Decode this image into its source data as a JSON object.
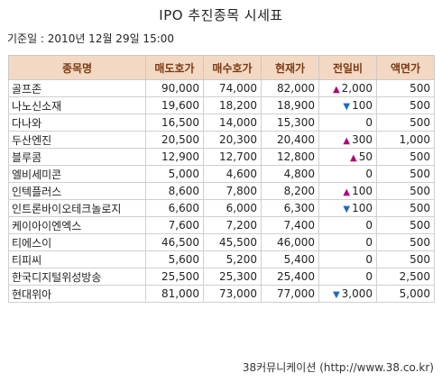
{
  "title": "IPO 추진종목 시세표",
  "base_date": "기준일 : 2010년 12월 29일 15:00",
  "colors": {
    "header_bg": "#f3d9c3",
    "up": "#b0007a",
    "down": "#1f68c9"
  },
  "icons": {
    "up": "▲",
    "down": "▼"
  },
  "columns": [
    "종목명",
    "매도호가",
    "매수호가",
    "현재가",
    "전일비",
    "액면가"
  ],
  "rows": [
    {
      "name": "골프존",
      "sell": "90,000",
      "buy": "74,000",
      "price": "82,000",
      "dir": "up",
      "change": "2,000",
      "par": "500"
    },
    {
      "name": "나노신소재",
      "sell": "19,600",
      "buy": "18,200",
      "price": "18,900",
      "dir": "down",
      "change": "100",
      "par": "500"
    },
    {
      "name": "다나와",
      "sell": "16,500",
      "buy": "14,000",
      "price": "15,300",
      "dir": "",
      "change": "0",
      "par": "500"
    },
    {
      "name": "두산엔진",
      "sell": "20,500",
      "buy": "20,300",
      "price": "20,400",
      "dir": "up",
      "change": "300",
      "par": "1,000"
    },
    {
      "name": "블루콤",
      "sell": "12,900",
      "buy": "12,700",
      "price": "12,800",
      "dir": "up",
      "change": "50",
      "par": "500"
    },
    {
      "name": "엘비세미콘",
      "sell": "5,000",
      "buy": "4,600",
      "price": "4,800",
      "dir": "",
      "change": "0",
      "par": "500"
    },
    {
      "name": "인텍플러스",
      "sell": "8,600",
      "buy": "7,800",
      "price": "8,200",
      "dir": "up",
      "change": "100",
      "par": "500"
    },
    {
      "name": "인트론바이오테크놀로지",
      "sell": "6,600",
      "buy": "6,000",
      "price": "6,300",
      "dir": "down",
      "change": "100",
      "par": "500"
    },
    {
      "name": "케이아이엔엑스",
      "sell": "7,600",
      "buy": "7,200",
      "price": "7,400",
      "dir": "",
      "change": "0",
      "par": "500"
    },
    {
      "name": "티에스이",
      "sell": "46,500",
      "buy": "45,500",
      "price": "46,000",
      "dir": "",
      "change": "0",
      "par": "500"
    },
    {
      "name": "티피씨",
      "sell": "5,600",
      "buy": "5,200",
      "price": "5,400",
      "dir": "",
      "change": "0",
      "par": "500"
    },
    {
      "name": "한국디지털위성방송",
      "sell": "25,500",
      "buy": "25,300",
      "price": "25,400",
      "dir": "",
      "change": "0",
      "par": "2,500"
    },
    {
      "name": "현대위아",
      "sell": "81,000",
      "buy": "73,000",
      "price": "77,000",
      "dir": "down",
      "change": "3,000",
      "par": "5,000"
    }
  ],
  "footer": "38커뮤니케이션 (http://www.38.co.kr)"
}
